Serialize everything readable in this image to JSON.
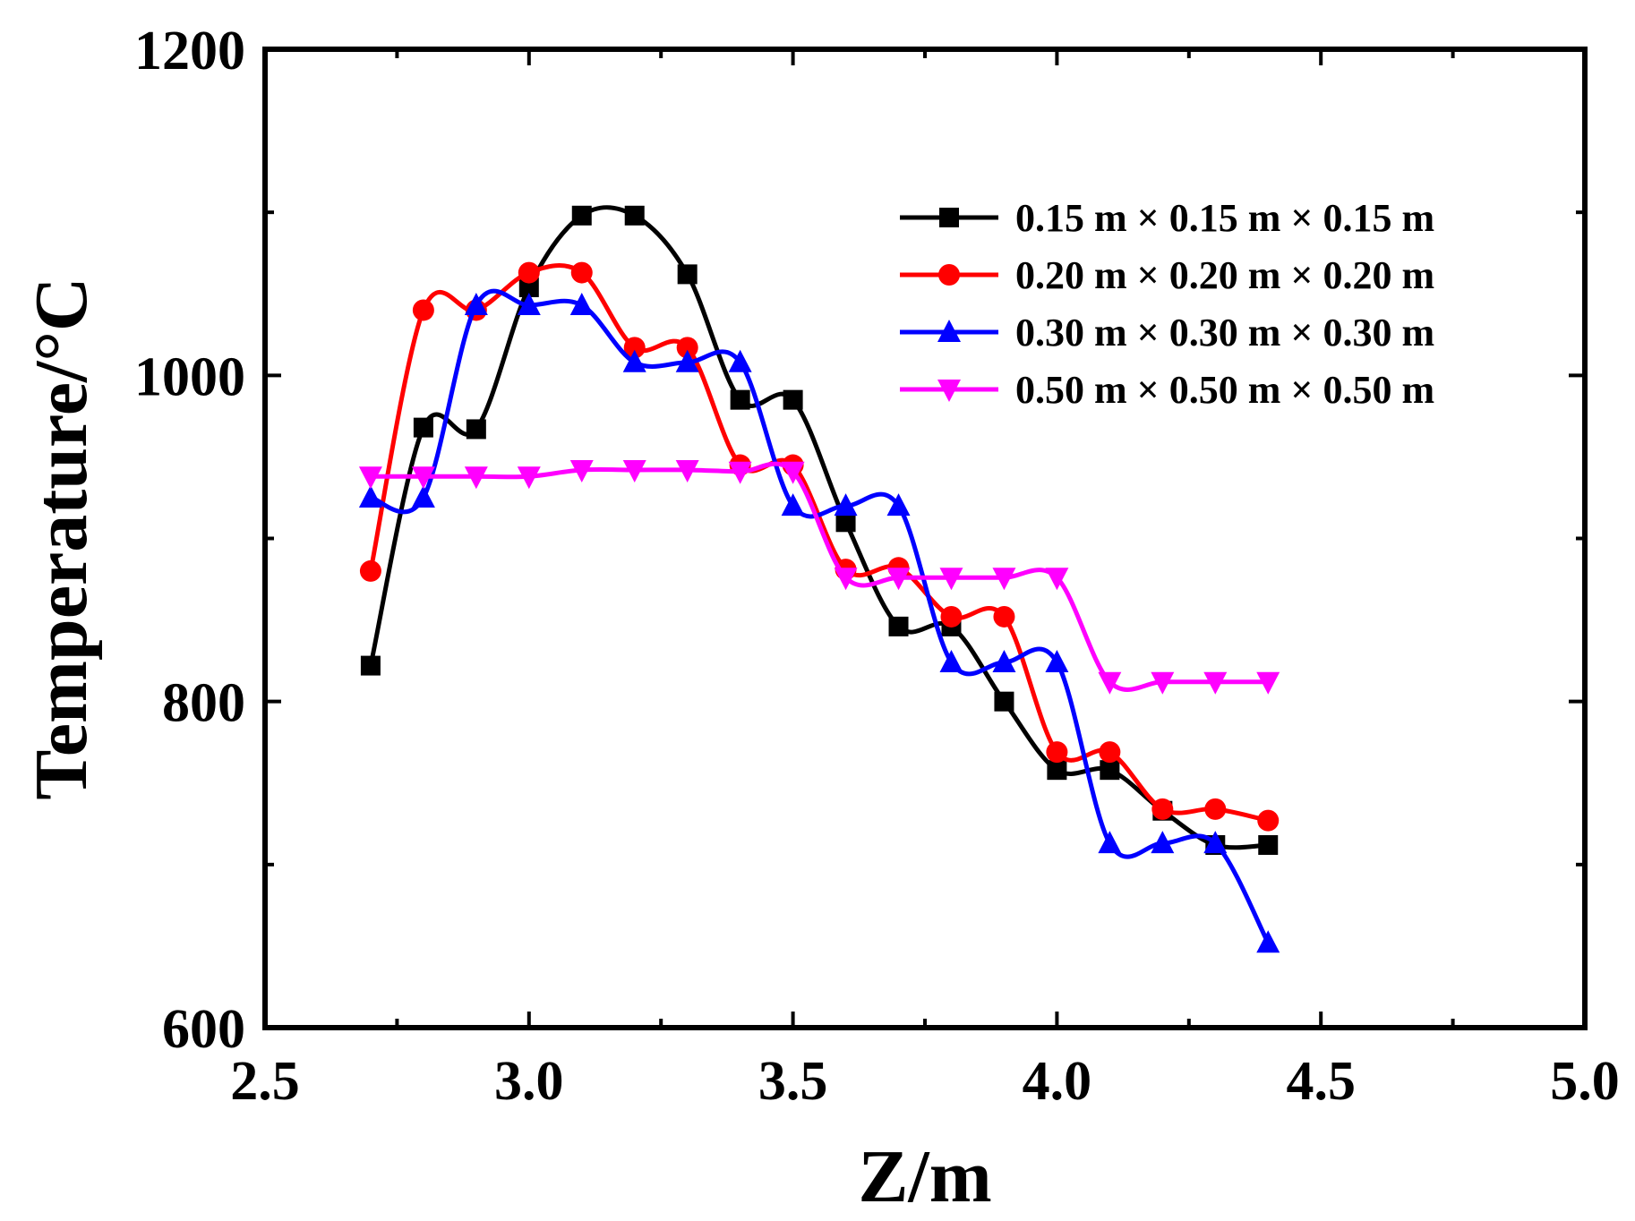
{
  "chart_data": {
    "type": "line",
    "title": "",
    "xlabel": "Z/m",
    "ylabel": "Temperature/°C",
    "xlim": [
      2.5,
      5.0
    ],
    "ylim": [
      600,
      1200
    ],
    "x_ticks": [
      "2.5",
      "3.0",
      "3.5",
      "4.0",
      "4.5",
      "5.0"
    ],
    "y_ticks": [
      "600",
      "800",
      "1000",
      "1200"
    ],
    "grid": false,
    "legend_position": "top-right",
    "series": [
      {
        "name": "0.15 m × 0.15 m × 0.15 m",
        "color": "#000000",
        "marker": "square",
        "x": [
          2.7,
          2.8,
          2.9,
          3.0,
          3.1,
          3.2,
          3.3,
          3.4,
          3.5,
          3.6,
          3.7,
          3.8,
          3.9,
          4.0,
          4.1,
          4.2,
          4.3,
          4.4
        ],
        "y": [
          822,
          968,
          967,
          1054,
          1098,
          1098,
          1062,
          985,
          985,
          910,
          846,
          846,
          800,
          758,
          758,
          733,
          712,
          712
        ]
      },
      {
        "name": "0.20 m × 0.20 m × 0.20 m",
        "color": "#ff0000",
        "marker": "circle",
        "x": [
          2.7,
          2.8,
          2.9,
          3.0,
          3.1,
          3.2,
          3.3,
          3.4,
          3.5,
          3.6,
          3.7,
          3.8,
          3.9,
          4.0,
          4.1,
          4.2,
          4.3,
          4.4
        ],
        "y": [
          880,
          1040,
          1040,
          1063,
          1063,
          1017,
          1017,
          945,
          945,
          881,
          882,
          852,
          852,
          769,
          769,
          734,
          734,
          727
        ]
      },
      {
        "name": "0.30 m × 0.30 m × 0.30 m",
        "color": "#0000ff",
        "marker": "triangle-up",
        "x": [
          2.7,
          2.8,
          2.9,
          3.0,
          3.1,
          3.2,
          3.3,
          3.4,
          3.5,
          3.6,
          3.7,
          3.8,
          3.9,
          4.0,
          4.1,
          4.2,
          4.3,
          4.4
        ],
        "y": [
          925,
          925,
          1043,
          1043,
          1043,
          1008,
          1008,
          1008,
          920,
          920,
          920,
          824,
          824,
          824,
          713,
          713,
          713,
          652
        ]
      },
      {
        "name": "0.50 m × 0.50 m × 0.50 m",
        "color": "#ff00ff",
        "marker": "triangle-down",
        "x": [
          2.7,
          2.8,
          2.9,
          3.0,
          3.1,
          3.2,
          3.3,
          3.4,
          3.5,
          3.6,
          3.7,
          3.8,
          3.9,
          4.0,
          4.1,
          4.2,
          4.3,
          4.4
        ],
        "y": [
          938,
          938,
          938,
          938,
          942,
          942,
          942,
          941,
          941,
          876,
          876,
          876,
          876,
          876,
          812,
          812,
          812,
          812
        ]
      }
    ]
  }
}
